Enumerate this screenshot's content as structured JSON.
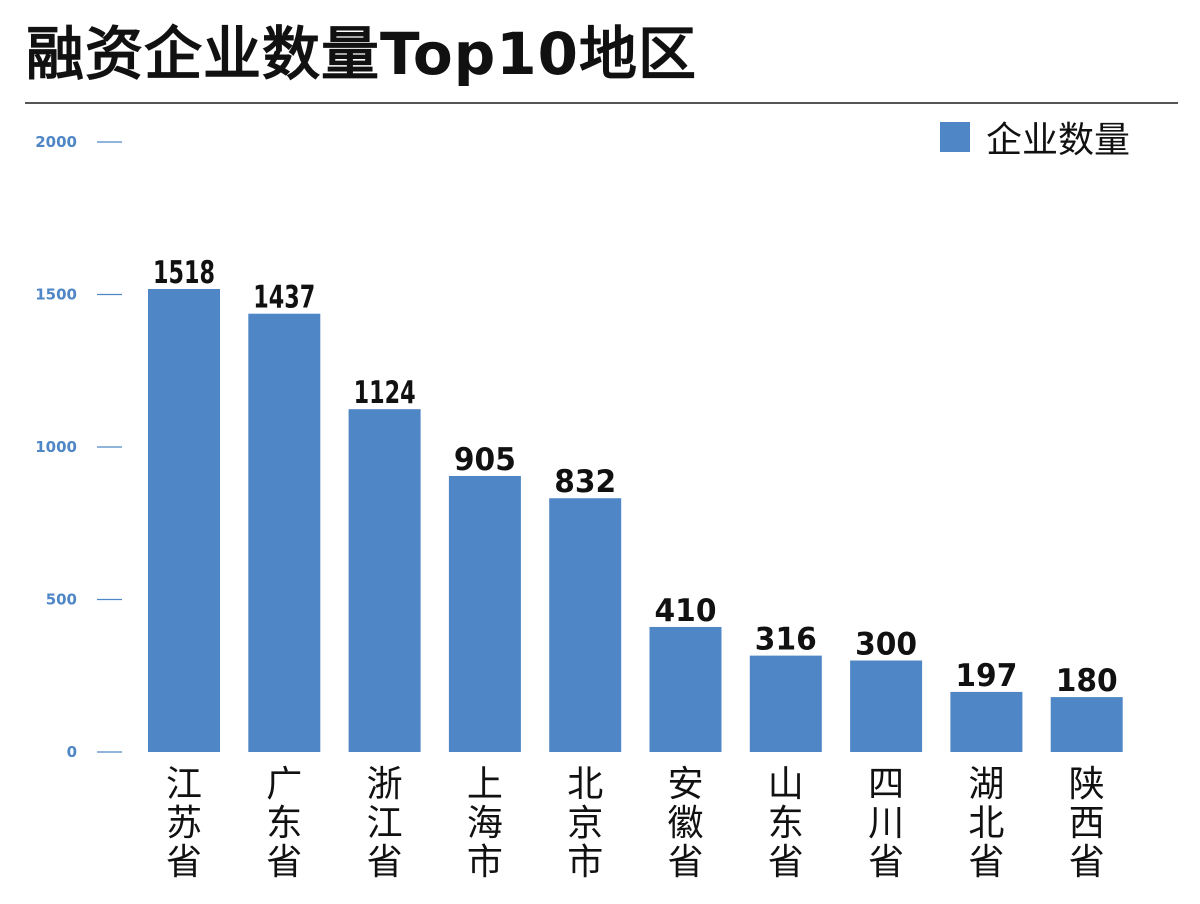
{
  "colors": {
    "bar": "#4f86c6",
    "axis": "#4f86c6",
    "text": "#111111"
  },
  "chart_data": {
    "type": "bar",
    "title": "融资企业数量Top10地区",
    "categories": [
      "江苏省",
      "广东省",
      "浙江省",
      "上海市",
      "北京市",
      "安徽省",
      "山东省",
      "四川省",
      "湖北省",
      "陕西省"
    ],
    "series": [
      {
        "name": "企业数量",
        "values": [
          1518,
          1437,
          1124,
          905,
          832,
          410,
          316,
          300,
          197,
          180
        ]
      }
    ],
    "data_labels": [
      "1518",
      "1437",
      "1124",
      "905",
      "832",
      "410",
      "316",
      "300",
      "197",
      "180"
    ],
    "y_ticks": [
      0,
      500,
      1000,
      1500,
      2000
    ],
    "y_tick_labels": [
      "0",
      "500",
      "1000",
      "1500",
      "2000"
    ],
    "ylim": [
      0,
      2000
    ],
    "xlabel": "",
    "ylabel": "",
    "grid": false,
    "legend_position": "top-right"
  }
}
